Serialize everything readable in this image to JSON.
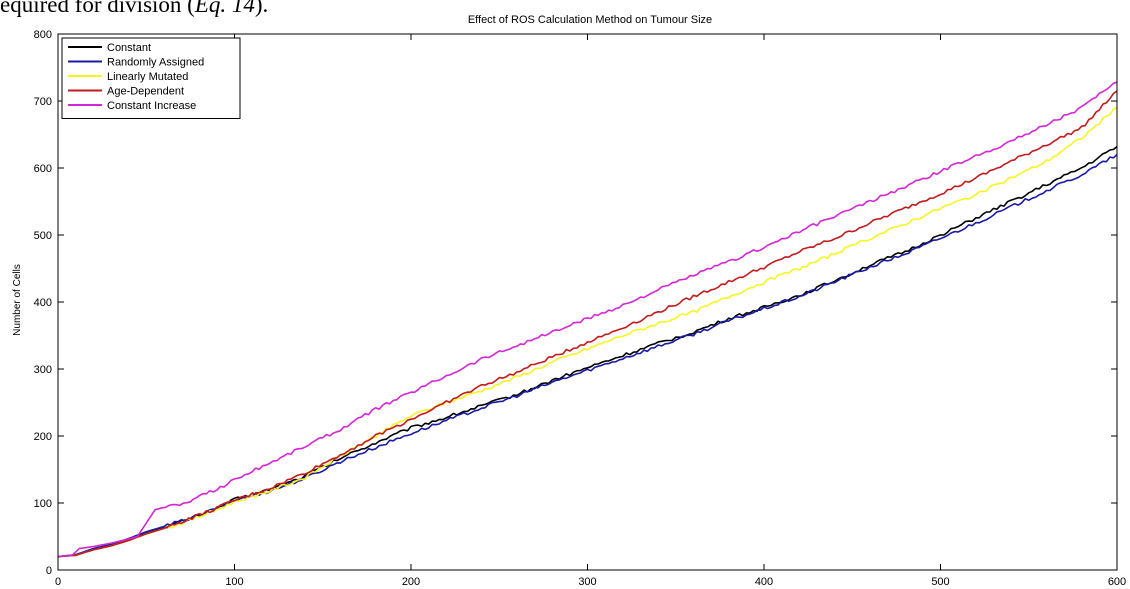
{
  "document": {
    "prefix": "equired for division (",
    "eq": "Eq. 14",
    "suffix": ")."
  },
  "chart_data": {
    "type": "line",
    "title": "Effect of ROS Calculation Method on Tumour Size",
    "xlabel": "",
    "ylabel": "Number of Cells",
    "xlim": [
      0,
      600
    ],
    "ylim": [
      0,
      800
    ],
    "x_ticks": [
      0,
      100,
      200,
      300,
      400,
      500,
      600
    ],
    "y_ticks": [
      0,
      100,
      200,
      300,
      400,
      500,
      600,
      700,
      800
    ],
    "grid": false,
    "legend_position": "top-left",
    "series": [
      {
        "name": "Constant",
        "color": "#000000",
        "points": [
          [
            0,
            20
          ],
          [
            10,
            22
          ],
          [
            20,
            32
          ],
          [
            30,
            38
          ],
          [
            40,
            46
          ],
          [
            50,
            56
          ],
          [
            60,
            64
          ],
          [
            70,
            72
          ],
          [
            80,
            82
          ],
          [
            90,
            92
          ],
          [
            100,
            105
          ],
          [
            120,
            120
          ],
          [
            140,
            140
          ],
          [
            160,
            167
          ],
          [
            180,
            190
          ],
          [
            200,
            212
          ],
          [
            220,
            228
          ],
          [
            240,
            245
          ],
          [
            260,
            262
          ],
          [
            280,
            283
          ],
          [
            300,
            302
          ],
          [
            320,
            320
          ],
          [
            340,
            338
          ],
          [
            360,
            355
          ],
          [
            380,
            375
          ],
          [
            400,
            392
          ],
          [
            420,
            410
          ],
          [
            440,
            432
          ],
          [
            460,
            455
          ],
          [
            480,
            475
          ],
          [
            500,
            500
          ],
          [
            520,
            525
          ],
          [
            540,
            550
          ],
          [
            560,
            575
          ],
          [
            580,
            600
          ],
          [
            600,
            632
          ]
        ]
      },
      {
        "name": "Randomly Assigned",
        "color": "#1a1aa8",
        "points": [
          [
            0,
            20
          ],
          [
            10,
            23
          ],
          [
            20,
            32
          ],
          [
            30,
            38
          ],
          [
            40,
            47
          ],
          [
            50,
            57
          ],
          [
            60,
            65
          ],
          [
            70,
            73
          ],
          [
            80,
            82
          ],
          [
            90,
            92
          ],
          [
            100,
            104
          ],
          [
            120,
            118
          ],
          [
            140,
            137
          ],
          [
            160,
            162
          ],
          [
            180,
            183
          ],
          [
            200,
            204
          ],
          [
            220,
            223
          ],
          [
            240,
            242
          ],
          [
            260,
            260
          ],
          [
            280,
            280
          ],
          [
            300,
            298
          ],
          [
            320,
            316
          ],
          [
            340,
            334
          ],
          [
            360,
            352
          ],
          [
            380,
            372
          ],
          [
            400,
            390
          ],
          [
            420,
            408
          ],
          [
            440,
            430
          ],
          [
            460,
            452
          ],
          [
            480,
            472
          ],
          [
            500,
            495
          ],
          [
            520,
            518
          ],
          [
            540,
            542
          ],
          [
            560,
            566
          ],
          [
            580,
            590
          ],
          [
            600,
            620
          ]
        ]
      },
      {
        "name": "Linearly Mutated",
        "color": "#f5f522",
        "points": [
          [
            0,
            20
          ],
          [
            10,
            22
          ],
          [
            20,
            30
          ],
          [
            30,
            36
          ],
          [
            40,
            44
          ],
          [
            50,
            54
          ],
          [
            60,
            62
          ],
          [
            70,
            70
          ],
          [
            80,
            80
          ],
          [
            90,
            90
          ],
          [
            100,
            102
          ],
          [
            120,
            118
          ],
          [
            140,
            138
          ],
          [
            160,
            170
          ],
          [
            180,
            200
          ],
          [
            200,
            230
          ],
          [
            220,
            250
          ],
          [
            240,
            268
          ],
          [
            260,
            288
          ],
          [
            280,
            310
          ],
          [
            300,
            330
          ],
          [
            320,
            350
          ],
          [
            340,
            368
          ],
          [
            360,
            385
          ],
          [
            380,
            408
          ],
          [
            400,
            430
          ],
          [
            420,
            450
          ],
          [
            440,
            472
          ],
          [
            460,
            495
          ],
          [
            480,
            517
          ],
          [
            500,
            540
          ],
          [
            520,
            560
          ],
          [
            540,
            585
          ],
          [
            560,
            610
          ],
          [
            580,
            645
          ],
          [
            600,
            690
          ]
        ]
      },
      {
        "name": "Age-Dependent",
        "color": "#c21b1b",
        "points": [
          [
            0,
            20
          ],
          [
            10,
            22
          ],
          [
            20,
            30
          ],
          [
            30,
            36
          ],
          [
            40,
            44
          ],
          [
            50,
            54
          ],
          [
            60,
            62
          ],
          [
            70,
            72
          ],
          [
            80,
            82
          ],
          [
            90,
            92
          ],
          [
            100,
            104
          ],
          [
            120,
            122
          ],
          [
            140,
            145
          ],
          [
            160,
            172
          ],
          [
            180,
            200
          ],
          [
            200,
            225
          ],
          [
            220,
            250
          ],
          [
            240,
            275
          ],
          [
            260,
            295
          ],
          [
            280,
            318
          ],
          [
            300,
            340
          ],
          [
            320,
            362
          ],
          [
            340,
            385
          ],
          [
            360,
            408
          ],
          [
            380,
            430
          ],
          [
            400,
            452
          ],
          [
            420,
            475
          ],
          [
            440,
            495
          ],
          [
            460,
            518
          ],
          [
            480,
            540
          ],
          [
            500,
            562
          ],
          [
            520,
            585
          ],
          [
            540,
            610
          ],
          [
            560,
            635
          ],
          [
            580,
            660
          ],
          [
            600,
            715
          ]
        ]
      },
      {
        "name": "Constant Increase",
        "color": "#d426d4",
        "points": [
          [
            0,
            20
          ],
          [
            8,
            22
          ],
          [
            12,
            32
          ],
          [
            20,
            35
          ],
          [
            30,
            40
          ],
          [
            38,
            45
          ],
          [
            45,
            50
          ],
          [
            50,
            70
          ],
          [
            55,
            90
          ],
          [
            65,
            97
          ],
          [
            75,
            100
          ],
          [
            80,
            112
          ],
          [
            90,
            120
          ],
          [
            100,
            135
          ],
          [
            120,
            160
          ],
          [
            140,
            185
          ],
          [
            160,
            210
          ],
          [
            180,
            240
          ],
          [
            200,
            265
          ],
          [
            220,
            290
          ],
          [
            240,
            315
          ],
          [
            260,
            335
          ],
          [
            280,
            355
          ],
          [
            300,
            375
          ],
          [
            320,
            395
          ],
          [
            340,
            418
          ],
          [
            360,
            440
          ],
          [
            380,
            460
          ],
          [
            400,
            482
          ],
          [
            420,
            505
          ],
          [
            440,
            528
          ],
          [
            460,
            550
          ],
          [
            480,
            572
          ],
          [
            500,
            595
          ],
          [
            520,
            618
          ],
          [
            540,
            640
          ],
          [
            560,
            665
          ],
          [
            580,
            690
          ],
          [
            600,
            728
          ]
        ]
      }
    ]
  }
}
